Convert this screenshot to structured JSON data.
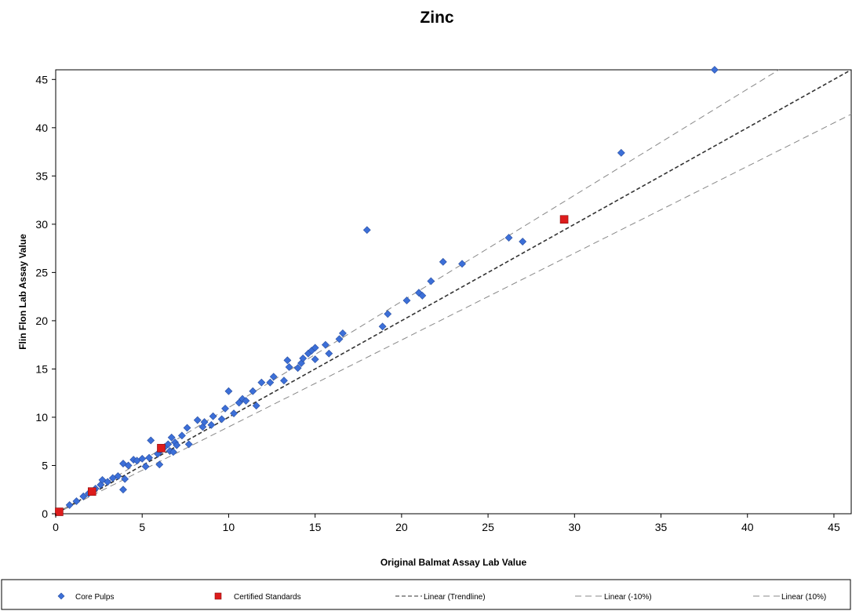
{
  "chart_data": {
    "type": "scatter",
    "title": "Zinc",
    "xlabel": "Original Balmat Assay Lab Value",
    "ylabel": "Flin Flon Lab Assay Value",
    "xlim": [
      0,
      46
    ],
    "ylim": [
      0,
      46
    ],
    "xticks": [
      0,
      5,
      10,
      15,
      20,
      25,
      30,
      35,
      40,
      45
    ],
    "yticks": [
      0,
      5,
      10,
      15,
      20,
      25,
      30,
      35,
      40,
      45
    ],
    "grid": false,
    "legend_position": "bottom",
    "series": [
      {
        "name": "Core Pulps",
        "marker": "diamond",
        "color": "#3c6fd8",
        "points": [
          [
            0.2,
            0.2
          ],
          [
            0.8,
            0.9
          ],
          [
            1.2,
            1.3
          ],
          [
            1.6,
            1.8
          ],
          [
            1.9,
            2.1
          ],
          [
            2.3,
            2.6
          ],
          [
            2.6,
            3.0
          ],
          [
            2.7,
            3.5
          ],
          [
            3.0,
            3.3
          ],
          [
            3.3,
            3.7
          ],
          [
            3.6,
            3.9
          ],
          [
            3.9,
            2.5
          ],
          [
            4.0,
            3.6
          ],
          [
            3.9,
            5.2
          ],
          [
            4.2,
            5.0
          ],
          [
            4.5,
            5.6
          ],
          [
            4.7,
            5.5
          ],
          [
            5.0,
            5.7
          ],
          [
            5.2,
            4.9
          ],
          [
            5.4,
            5.8
          ],
          [
            5.5,
            7.6
          ],
          [
            5.9,
            6.2
          ],
          [
            6.0,
            5.1
          ],
          [
            6.1,
            6.6
          ],
          [
            6.3,
            6.9
          ],
          [
            6.5,
            7.2
          ],
          [
            6.6,
            6.5
          ],
          [
            6.7,
            7.9
          ],
          [
            6.8,
            6.4
          ],
          [
            6.9,
            7.4
          ],
          [
            7.0,
            7.1
          ],
          [
            7.3,
            8.1
          ],
          [
            7.6,
            8.9
          ],
          [
            7.7,
            7.2
          ],
          [
            8.2,
            9.7
          ],
          [
            8.5,
            9.0
          ],
          [
            8.6,
            9.5
          ],
          [
            9.0,
            9.2
          ],
          [
            9.1,
            10.1
          ],
          [
            9.6,
            9.8
          ],
          [
            9.8,
            10.9
          ],
          [
            10.0,
            12.7
          ],
          [
            10.3,
            10.4
          ],
          [
            10.6,
            11.5
          ],
          [
            10.8,
            11.9
          ],
          [
            11.0,
            11.7
          ],
          [
            11.4,
            12.7
          ],
          [
            11.6,
            11.2
          ],
          [
            11.9,
            13.6
          ],
          [
            12.4,
            13.6
          ],
          [
            12.6,
            14.2
          ],
          [
            13.2,
            13.8
          ],
          [
            13.4,
            15.9
          ],
          [
            13.5,
            15.2
          ],
          [
            14.0,
            15.1
          ],
          [
            14.2,
            15.6
          ],
          [
            14.3,
            16.1
          ],
          [
            14.6,
            16.6
          ],
          [
            14.8,
            16.9
          ],
          [
            15.0,
            16.0
          ],
          [
            15.0,
            17.2
          ],
          [
            15.6,
            17.5
          ],
          [
            15.8,
            16.6
          ],
          [
            16.4,
            18.1
          ],
          [
            16.6,
            18.7
          ],
          [
            18.0,
            29.4
          ],
          [
            18.9,
            19.4
          ],
          [
            19.2,
            20.7
          ],
          [
            20.3,
            22.1
          ],
          [
            21.0,
            22.9
          ],
          [
            21.2,
            22.6
          ],
          [
            21.7,
            24.1
          ],
          [
            22.4,
            26.1
          ],
          [
            23.5,
            25.9
          ],
          [
            26.2,
            28.6
          ],
          [
            27.0,
            28.2
          ],
          [
            32.7,
            37.4
          ],
          [
            38.1,
            46.0
          ]
        ]
      },
      {
        "name": "Certified Standards",
        "marker": "square",
        "color": "#dd1c1c",
        "points": [
          [
            0.2,
            0.2
          ],
          [
            2.1,
            2.3
          ],
          [
            6.1,
            6.8
          ],
          [
            29.4,
            30.5
          ]
        ]
      }
    ],
    "lines": [
      {
        "name": "Linear (Trendline)",
        "slope": 1.0,
        "color": "#333333",
        "style": "dashed"
      },
      {
        "name": "Linear (-10%)",
        "slope": 0.9,
        "color": "#888888",
        "style": "dashed"
      },
      {
        "name": "Linear (10%)",
        "slope": 1.1,
        "color": "#888888",
        "style": "dashed"
      }
    ],
    "legend": {
      "core_pulps": "Core Pulps",
      "certified_standards": "Certified Standards",
      "trendline": "Linear (Trendline)",
      "minus10": "Linear (-10%)",
      "plus10": "Linear (10%)"
    }
  }
}
